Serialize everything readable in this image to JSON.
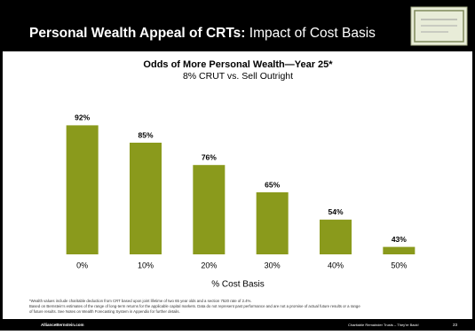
{
  "slide": {
    "title_bold": "Personal Wealth Appeal of CRTs:",
    "title_rest": "Impact of Cost Basis",
    "footnotes": [
      "*Wealth values include charitable deduction from CRT based upon joint lifetime of two 65 year olds and a section 7520 rate of 2.4%.",
      "Based on Bernstein's estimates of the range of long-term returns for the applicable capital markets. Data do not represent past performance and are not a promise of actual future results or a range",
      "of future results. See Notes on Wealth Forecasting System in Appendix for further details."
    ],
    "footer_left": "AllianceBernstein.com",
    "footer_center": "Charitable Remainder Trusts – They're Back!",
    "page_number": "23"
  },
  "chart_data": {
    "type": "bar",
    "title": "Odds of More Personal Wealth—Year 25*",
    "subtitle": "8% CRUT vs. Sell Outright",
    "x_label": "% Cost Basis",
    "categories": [
      "0%",
      "10%",
      "20%",
      "30%",
      "40%",
      "50%"
    ],
    "values": [
      92,
      85,
      76,
      65,
      54,
      43
    ],
    "value_labels": [
      "92%",
      "85%",
      "76%",
      "65%",
      "54%",
      "43%"
    ],
    "color": "#8a9a1c",
    "ylim": [
      40,
      100
    ]
  }
}
